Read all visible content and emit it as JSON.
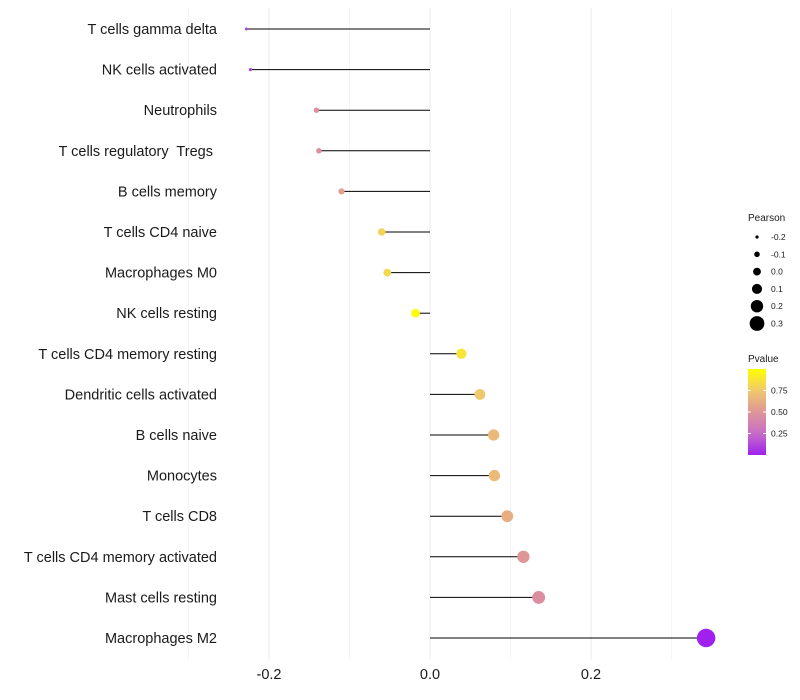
{
  "chart_data": {
    "type": "lollipop",
    "title": "",
    "xlabel": "",
    "ylabel": "",
    "xlim": [
      -0.33,
      0.345
    ],
    "xticks": [
      -0.2,
      0.0,
      0.2
    ],
    "xtick_labels": [
      "-0.2",
      "0.0",
      "0.2"
    ],
    "grid": true,
    "categories": [
      "T cells gamma delta",
      "NK cells activated",
      "Neutrophils",
      "T cells regulatory  Tregs ",
      "B cells memory",
      "T cells CD4 naive",
      "Macrophages M0",
      "NK cells resting",
      "T cells CD4 memory resting",
      "Dendritic cells activated",
      "B cells naive",
      "Monocytes",
      "T cells CD8",
      "T cells CD4 memory activated",
      "Mast cells resting",
      "Macrophages M2"
    ],
    "pearson": [
      -0.228,
      -0.223,
      -0.141,
      -0.138,
      -0.11,
      -0.06,
      -0.053,
      -0.018,
      0.039,
      0.062,
      0.079,
      0.08,
      0.096,
      0.116,
      0.135,
      0.343
    ],
    "pvalue": [
      0.1,
      0.12,
      0.45,
      0.45,
      0.55,
      0.8,
      0.82,
      0.99,
      0.88,
      0.75,
      0.68,
      0.68,
      0.62,
      0.5,
      0.45,
      0.001
    ],
    "legend": {
      "size_title": "Pearson",
      "size_values": [
        -0.2,
        -0.1,
        0.0,
        0.1,
        0.2,
        0.3
      ],
      "size_labels": [
        "-0.2",
        "-0.1",
        "0.0",
        "0.1",
        "0.2",
        "0.3"
      ],
      "color_title": "Pvalue",
      "color_range": [
        0.0,
        1.0
      ],
      "color_ticks": [
        0.25,
        0.5,
        0.75
      ],
      "color_tick_labels": [
        "0.25",
        "0.50",
        "0.75"
      ],
      "position": "right"
    },
    "colors": {
      "low": "#a020f0",
      "high": "#ffff00",
      "stem": "#000000",
      "grid": "#ebebeb"
    }
  }
}
